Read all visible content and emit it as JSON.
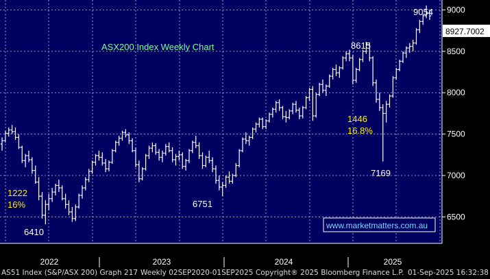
{
  "chart_data": {
    "type": "ohlc",
    "title": "ASX200 Index Weekly Chart",
    "ylim": [
      6180,
      9120
    ],
    "y_ticks": [
      "6500",
      "7000",
      "7500",
      "8000",
      "8500",
      "9000"
    ],
    "x_ticks": [
      "2022",
      "2023",
      "2024",
      "2025"
    ],
    "last_price": "8927.7002",
    "bars": [
      [
        7380,
        7460,
        7300,
        7420
      ],
      [
        7420,
        7540,
        7400,
        7510
      ],
      [
        7510,
        7580,
        7470,
        7550
      ],
      [
        7550,
        7610,
        7500,
        7530
      ],
      [
        7530,
        7580,
        7430,
        7460
      ],
      [
        7460,
        7500,
        7320,
        7340
      ],
      [
        7340,
        7360,
        7150,
        7180
      ],
      [
        7180,
        7260,
        7100,
        7240
      ],
      [
        7240,
        7300,
        7160,
        7190
      ],
      [
        7190,
        7220,
        7020,
        7060
      ],
      [
        7060,
        7120,
        6900,
        6920
      ],
      [
        6920,
        6980,
        6700,
        6750
      ],
      [
        6750,
        6800,
        6480,
        6520
      ],
      [
        6520,
        6700,
        6410,
        6650
      ],
      [
        6650,
        6780,
        6580,
        6720
      ],
      [
        6720,
        6850,
        6680,
        6800
      ],
      [
        6800,
        6900,
        6760,
        6880
      ],
      [
        6880,
        6950,
        6800,
        6850
      ],
      [
        6850,
        6880,
        6700,
        6720
      ],
      [
        6720,
        6780,
        6600,
        6650
      ],
      [
        6650,
        6700,
        6520,
        6560
      ],
      [
        6560,
        6620,
        6440,
        6480
      ],
      [
        6480,
        6650,
        6450,
        6620
      ],
      [
        6620,
        6780,
        6600,
        6760
      ],
      [
        6760,
        6880,
        6720,
        6850
      ],
      [
        6850,
        6980,
        6820,
        6950
      ],
      [
        6950,
        7080,
        6920,
        7050
      ],
      [
        7050,
        7180,
        7020,
        7160
      ],
      [
        7160,
        7260,
        7120,
        7240
      ],
      [
        7240,
        7300,
        7180,
        7220
      ],
      [
        7220,
        7280,
        7120,
        7150
      ],
      [
        7150,
        7200,
        7040,
        7080
      ],
      [
        7080,
        7180,
        7050,
        7160
      ],
      [
        7160,
        7320,
        7140,
        7300
      ],
      [
        7300,
        7420,
        7280,
        7400
      ],
      [
        7400,
        7480,
        7360,
        7450
      ],
      [
        7450,
        7540,
        7420,
        7520
      ],
      [
        7520,
        7560,
        7460,
        7490
      ],
      [
        7490,
        7520,
        7380,
        7420
      ],
      [
        7420,
        7450,
        7280,
        7300
      ],
      [
        7300,
        7340,
        7100,
        7130
      ],
      [
        7130,
        7180,
        6920,
        6960
      ],
      [
        6960,
        7100,
        6940,
        7080
      ],
      [
        7080,
        7260,
        7060,
        7240
      ],
      [
        7240,
        7360,
        7200,
        7330
      ],
      [
        7330,
        7400,
        7280,
        7360
      ],
      [
        7360,
        7390,
        7250,
        7280
      ],
      [
        7280,
        7320,
        7180,
        7220
      ],
      [
        7220,
        7300,
        7160,
        7270
      ],
      [
        7270,
        7380,
        7240,
        7350
      ],
      [
        7350,
        7400,
        7280,
        7300
      ],
      [
        7300,
        7340,
        7160,
        7190
      ],
      [
        7190,
        7260,
        7120,
        7230
      ],
      [
        7230,
        7300,
        7180,
        7250
      ],
      [
        7250,
        7280,
        7080,
        7110
      ],
      [
        7110,
        7200,
        7060,
        7180
      ],
      [
        7180,
        7320,
        7150,
        7300
      ],
      [
        7300,
        7420,
        7270,
        7400
      ],
      [
        7400,
        7480,
        7330,
        7360
      ],
      [
        7360,
        7400,
        7200,
        7240
      ],
      [
        7240,
        7280,
        7080,
        7120
      ],
      [
        7120,
        7240,
        7100,
        7220
      ],
      [
        7220,
        7300,
        7150,
        7180
      ],
      [
        7180,
        7220,
        7040,
        7080
      ],
      [
        7080,
        7120,
        6900,
        6940
      ],
      [
        6940,
        7000,
        6820,
        6860
      ],
      [
        6860,
        6920,
        6751,
        6880
      ],
      [
        6880,
        7000,
        6850,
        6980
      ],
      [
        6980,
        7050,
        6900,
        6930
      ],
      [
        6930,
        7020,
        6900,
        7000
      ],
      [
        7000,
        7150,
        6980,
        7120
      ],
      [
        7120,
        7320,
        7100,
        7300
      ],
      [
        7300,
        7460,
        7280,
        7440
      ],
      [
        7440,
        7520,
        7380,
        7420
      ],
      [
        7420,
        7480,
        7360,
        7460
      ],
      [
        7460,
        7580,
        7440,
        7560
      ],
      [
        7560,
        7640,
        7520,
        7620
      ],
      [
        7620,
        7700,
        7580,
        7680
      ],
      [
        7680,
        7700,
        7560,
        7590
      ],
      [
        7590,
        7680,
        7560,
        7660
      ],
      [
        7660,
        7760,
        7640,
        7740
      ],
      [
        7740,
        7820,
        7700,
        7800
      ],
      [
        7800,
        7900,
        7760,
        7880
      ],
      [
        7880,
        7920,
        7780,
        7820
      ],
      [
        7820,
        7840,
        7680,
        7710
      ],
      [
        7710,
        7780,
        7640,
        7700
      ],
      [
        7700,
        7800,
        7680,
        7780
      ],
      [
        7780,
        7880,
        7740,
        7860
      ],
      [
        7860,
        7900,
        7760,
        7790
      ],
      [
        7790,
        7820,
        7680,
        7720
      ],
      [
        7720,
        7840,
        7690,
        7820
      ],
      [
        7820,
        7960,
        7800,
        7940
      ],
      [
        7940,
        8060,
        7900,
        8040
      ],
      [
        8040,
        8080,
        7660,
        7720
      ],
      [
        7720,
        8000,
        7700,
        7980
      ],
      [
        7980,
        8120,
        7960,
        8100
      ],
      [
        8100,
        8160,
        8000,
        8030
      ],
      [
        8030,
        8100,
        7960,
        8080
      ],
      [
        8080,
        8220,
        8060,
        8200
      ],
      [
        8200,
        8300,
        8160,
        8280
      ],
      [
        8280,
        8340,
        8200,
        8240
      ],
      [
        8240,
        8320,
        8180,
        8300
      ],
      [
        8300,
        8440,
        8280,
        8420
      ],
      [
        8420,
        8500,
        8380,
        8470
      ],
      [
        8470,
        8520,
        8380,
        8420
      ],
      [
        8420,
        8460,
        8100,
        8150
      ],
      [
        8150,
        8300,
        8120,
        8280
      ],
      [
        8280,
        8420,
        8260,
        8400
      ],
      [
        8400,
        8520,
        8370,
        8500
      ],
      [
        8500,
        8615,
        8470,
        8580
      ],
      [
        8580,
        8600,
        8380,
        8420
      ],
      [
        8420,
        8440,
        8080,
        8120
      ],
      [
        8120,
        8160,
        7880,
        7920
      ],
      [
        7920,
        8000,
        7780,
        7820
      ],
      [
        7820,
        7860,
        7169,
        7750
      ],
      [
        7750,
        7900,
        7640,
        7860
      ],
      [
        7860,
        7980,
        7820,
        7960
      ],
      [
        7960,
        8200,
        7940,
        8180
      ],
      [
        8180,
        8300,
        8160,
        8280
      ],
      [
        8280,
        8400,
        8260,
        8380
      ],
      [
        8380,
        8500,
        8360,
        8480
      ],
      [
        8480,
        8560,
        8420,
        8540
      ],
      [
        8540,
        8600,
        8480,
        8560
      ],
      [
        8560,
        8640,
        8500,
        8600
      ],
      [
        8600,
        8780,
        8580,
        8760
      ],
      [
        8760,
        8880,
        8720,
        8860
      ],
      [
        8860,
        8950,
        8820,
        8930
      ],
      [
        8930,
        9054,
        8900,
        8960
      ],
      [
        8960,
        9000,
        8880,
        8928
      ]
    ],
    "annotations": {
      "high1": "8615",
      "high2": "9054",
      "low1": "6410",
      "low2": "6751",
      "low3": "7169",
      "move1_pts": "1222",
      "move1_pct": "16%",
      "move2_pts": "1446",
      "move2_pct": "16.8%"
    },
    "watermark": "www.marketmatters.com.au"
  },
  "footer": {
    "ticker": "AS51 Index (S&P/ASX 200) Graph 217",
    "period": "Weekly 02SEP2020-01SEP2025",
    "copyright": "Copyright® 2025 Bloomberg Finance L.P.",
    "timestamp": "01-Sep-2025 16:32:38"
  },
  "colors": {
    "background": "#000060",
    "bars": "#ffffff",
    "title": "#7CFC9C",
    "move_labels": "#ffee00",
    "watermark": "#7fd8ff"
  }
}
